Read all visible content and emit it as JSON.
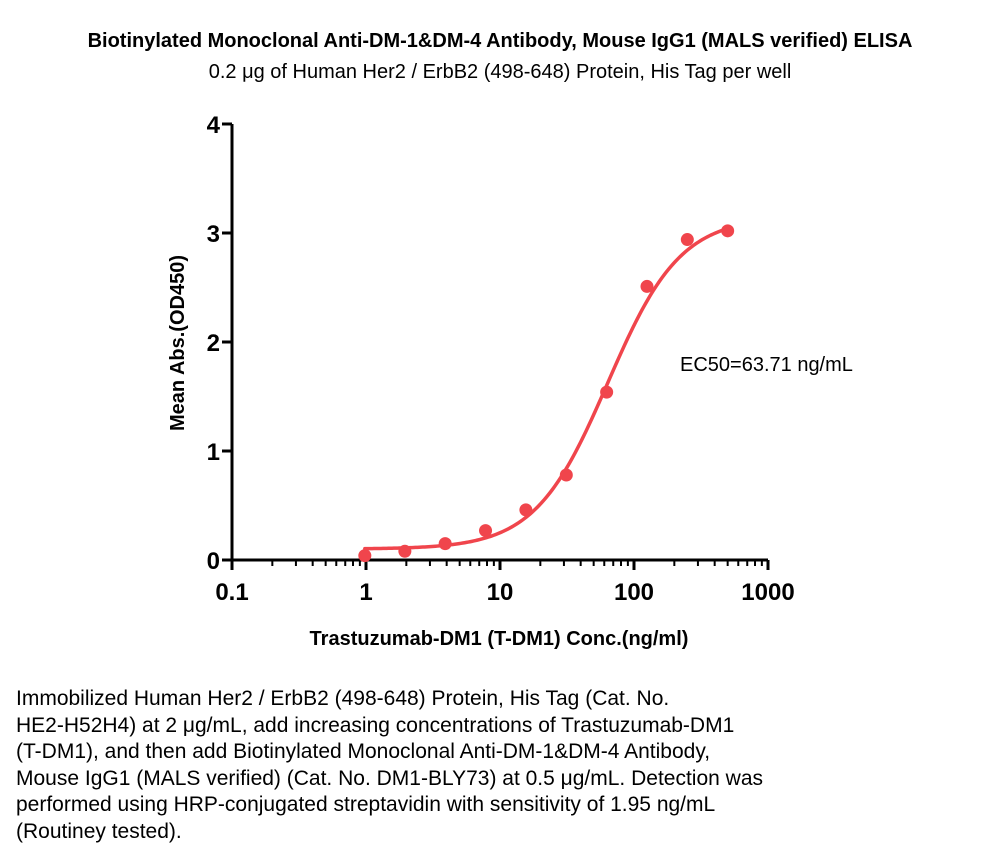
{
  "chart_data": {
    "type": "scatter",
    "title": "Biotinylated Monoclonal Anti-DM-1&DM-4 Antibody, Mouse IgG1 (MALS verified) ELISA",
    "subtitle": "0.2 μg of Human Her2 / ErbB2 (498-648) Protein, His Tag per well",
    "xlabel": "Trastuzumab-DM1 (T-DM1) Conc.(ng/ml)",
    "ylabel": "Mean Abs.(OD450)",
    "xscale": "log",
    "xlim": [
      0.1,
      1000
    ],
    "ylim": [
      0,
      4
    ],
    "x_ticks": [
      0.1,
      1,
      10,
      100,
      1000
    ],
    "x_tick_labels": [
      "0.1",
      "1",
      "10",
      "100",
      "1000"
    ],
    "y_ticks": [
      0,
      1,
      2,
      3,
      4
    ],
    "y_tick_labels": [
      "0",
      "1",
      "2",
      "3",
      "4"
    ],
    "series": [
      {
        "color": "#f0454c",
        "x": [
          0.98,
          1.95,
          3.9,
          7.8,
          15.6,
          31.25,
          62.5,
          125,
          250,
          500
        ],
        "y": [
          0.04,
          0.08,
          0.15,
          0.27,
          0.46,
          0.78,
          1.54,
          2.51,
          2.94,
          3.02
        ]
      }
    ],
    "fit": {
      "bottom": 0.1,
      "top": 3.15,
      "ec50": 63.71,
      "hill": 1.6
    },
    "annotation": "EC50=63.71 ng/mL",
    "grid": false,
    "legend": "none"
  },
  "caption": [
    "Immobilized Human Her2 / ErbB2 (498-648) Protein, His Tag (Cat. No.",
    "HE2-H52H4) at 2 μg/mL, add increasing concentrations of Trastuzumab-DM1",
    "(T-DM1), and then add Biotinylated Monoclonal Anti-DM-1&DM-4 Antibody,",
    "Mouse IgG1 (MALS verified) (Cat. No. DM1-BLY73) at 0.5 μg/mL. Detection was",
    "performed using HRP-conjugated streptavidin with sensitivity of 1.95 ng/mL",
    "(Routiney tested)."
  ]
}
